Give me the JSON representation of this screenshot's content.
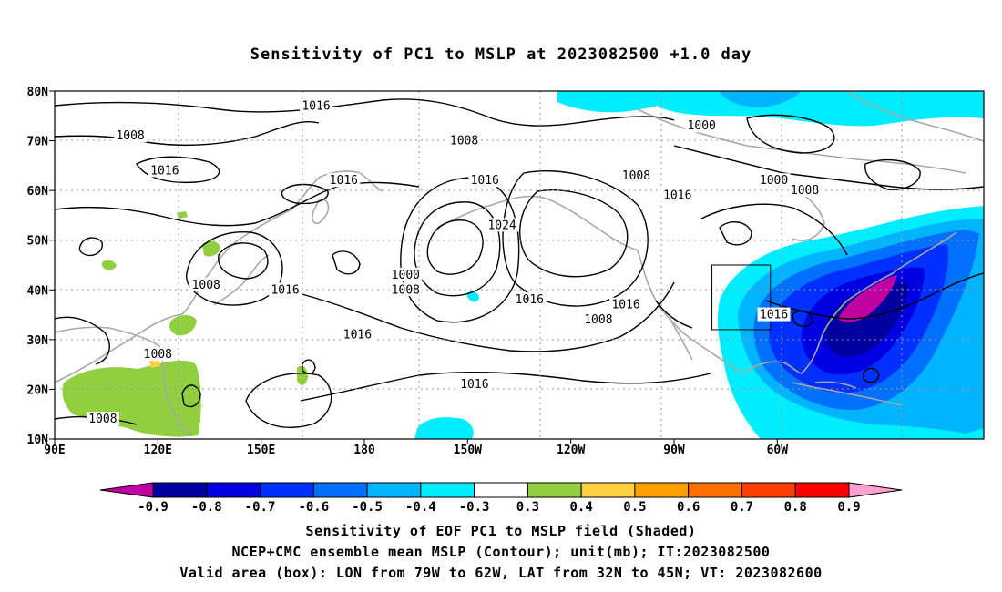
{
  "title": "Sensitivity of PC1 to MSLP at 2023082500 +1.0 day",
  "axes": {
    "lat_labels": [
      "80N",
      "70N",
      "60N",
      "50N",
      "40N",
      "30N",
      "20N",
      "10N"
    ],
    "lon_labels": [
      "90E",
      "120E",
      "150E",
      "180",
      "150W",
      "120W",
      "90W",
      "60W"
    ]
  },
  "contour_labels": [
    {
      "text": "1016",
      "lon": 166,
      "lat": 77
    },
    {
      "text": "1008",
      "lon": 112,
      "lat": 71
    },
    {
      "text": "1016",
      "lon": 122,
      "lat": 64
    },
    {
      "text": "1016",
      "lon": 174,
      "lat": 62
    },
    {
      "text": "1008",
      "lon": -151,
      "lat": 70
    },
    {
      "text": "1016",
      "lon": -145,
      "lat": 62
    },
    {
      "text": "1008",
      "lon": -101,
      "lat": 63
    },
    {
      "text": "1000",
      "lon": -82,
      "lat": 73
    },
    {
      "text": "1000",
      "lon": -61,
      "lat": 62
    },
    {
      "text": "1008",
      "lon": -52,
      "lat": 60
    },
    {
      "text": "1016",
      "lon": -89,
      "lat": 59
    },
    {
      "text": "1024",
      "lon": -140,
      "lat": 53
    },
    {
      "text": "1000",
      "lon": -168,
      "lat": 43
    },
    {
      "text": "1008",
      "lon": -168,
      "lat": 40
    },
    {
      "text": "1008",
      "lon": 134,
      "lat": 41
    },
    {
      "text": "1016",
      "lon": 157,
      "lat": 40
    },
    {
      "text": "1016",
      "lon": -132,
      "lat": 38
    },
    {
      "text": "1016",
      "lon": -104,
      "lat": 37
    },
    {
      "text": "1008",
      "lon": -112,
      "lat": 34
    },
    {
      "text": "1016",
      "lon": 178,
      "lat": 31
    },
    {
      "text": "1008",
      "lon": 120,
      "lat": 27
    },
    {
      "text": "1016",
      "lon": -148,
      "lat": 21
    },
    {
      "text": "1008",
      "lon": 104,
      "lat": 14
    },
    {
      "text": "1016",
      "lon": -61,
      "lat": 35
    }
  ],
  "valid_box": {
    "lon_min": -79,
    "lon_max": -62,
    "lat_min": 32,
    "lat_max": 45
  },
  "colorbar": {
    "labels": [
      "-0.9",
      "-0.8",
      "-0.7",
      "-0.6",
      "-0.5",
      "-0.4",
      "-0.3",
      "0.3",
      "0.4",
      "0.5",
      "0.6",
      "0.7",
      "0.8",
      "0.9"
    ],
    "colors": [
      "#0000a0",
      "#0000e0",
      "#0030ff",
      "#0070ff",
      "#00b4ff",
      "#00ecff",
      "#ffffff",
      "#90d040",
      "#ffd040",
      "#ffa000",
      "#ff7000",
      "#ff3c00",
      "#ff0000"
    ],
    "low_end_color": "#c000a0",
    "high_end_color": "#ffa0d0"
  },
  "footer": {
    "line1": "Sensitivity of EOF PC1 to MSLP field (Shaded)",
    "line2": "NCEP+CMC ensemble mean MSLP (Contour); unit(mb); IT:2023082500",
    "line3": "Valid area (box): LON from 79W to 62W, LAT from 32N to 45N; VT: 2023082600"
  }
}
